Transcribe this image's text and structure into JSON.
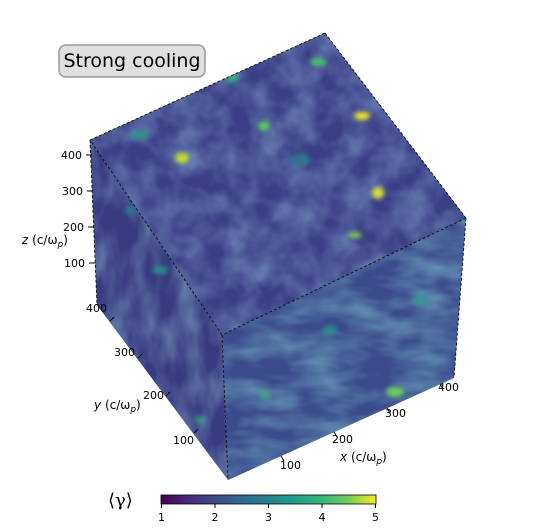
{
  "title_box": {
    "text": "Strong cooling"
  },
  "axes": {
    "x": {
      "label_var": "x",
      "label_unit": "(c/ω",
      "label_sub": "p",
      "label_close": ")",
      "ticks": [
        "100",
        "200",
        "300",
        "400"
      ]
    },
    "y": {
      "label_var": "y",
      "label_unit": "(c/ω",
      "label_sub": "p",
      "label_close": ")",
      "ticks": [
        "100",
        "200",
        "300",
        "400"
      ]
    },
    "z": {
      "label_var": "z",
      "label_unit": "(c/ω",
      "label_sub": "p",
      "label_close": ")",
      "ticks": [
        "100",
        "200",
        "300",
        "400"
      ]
    }
  },
  "colorbar": {
    "label": "⟨γ⟩",
    "ticks": [
      "1",
      "2",
      "3",
      "4",
      "5"
    ],
    "colormap": "viridis",
    "range": [
      1,
      5
    ]
  },
  "colors": {
    "dark": "#3b1f5f",
    "mid": "#2c6e8e",
    "teal": "#22a884",
    "bright": "#fde725",
    "box_fill": "#e0e0e0",
    "box_border": "#9a9a9a"
  }
}
